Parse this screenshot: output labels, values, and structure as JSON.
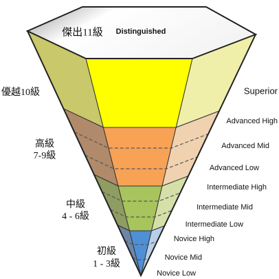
{
  "top": {
    "chinese": "傑出11級",
    "english": "Distinguished"
  },
  "left_labels": [
    {
      "lines": [
        "優越10級"
      ]
    },
    {
      "lines": [
        "高級",
        "7-9級"
      ]
    },
    {
      "lines": [
        "中級",
        "4 - 6級"
      ]
    },
    {
      "lines": [
        "初級",
        "1 - 3級"
      ]
    }
  ],
  "right_labels": [
    "Superior",
    "Advanced High",
    "Advanced Mid",
    "Advanced Low",
    "Intermediate High",
    "Intermediate Mid",
    "Intermediate Low",
    "Novice High",
    "Novice Mid",
    "Novice Low"
  ]
}
